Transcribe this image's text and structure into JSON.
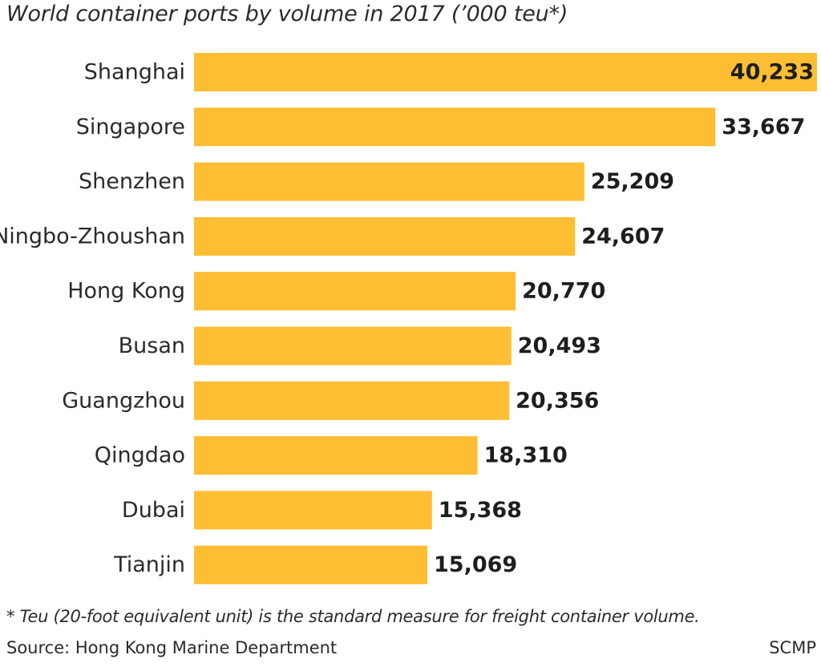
{
  "chart_data": {
    "type": "bar",
    "orientation": "horizontal",
    "title": "World container ports by volume in 2017 (’000 teu*)",
    "categories": [
      "Shanghai",
      "Singapore",
      "Shenzhen",
      "Ningbo-Zhoushan",
      "Hong Kong",
      "Busan",
      "Guangzhou",
      "Qingdao",
      "Dubai",
      "Tianjin"
    ],
    "values": [
      40233,
      33667,
      25209,
      24607,
      20770,
      20493,
      20356,
      18310,
      15368,
      15069
    ],
    "value_labels": [
      "40,233",
      "33,667",
      "25,209",
      "24,607",
      "20,770",
      "20,493",
      "20,356",
      "18,310",
      "15,368",
      "15,069"
    ],
    "xlim": [
      0,
      40233
    ],
    "grid": false,
    "bar_color": "#FDBE33",
    "xlabel": "",
    "ylabel": ""
  },
  "footnote": "* Teu (20-foot equivalent unit) is the standard measure for freight container volume.",
  "source": "Source: Hong Kong Marine Department",
  "credit": "SCMP"
}
